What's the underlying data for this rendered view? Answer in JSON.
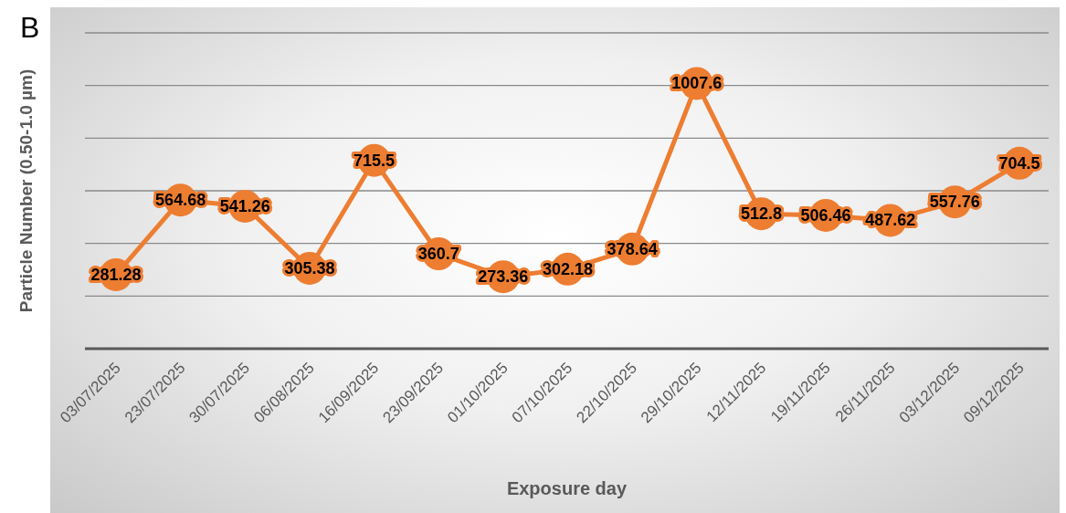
{
  "chart_data": {
    "type": "line",
    "xlabel": "Exposure day",
    "ylabel": "Particle Number (0.50-1.0 µm)",
    "annotations": [
      "B"
    ],
    "categories": [
      "03/07/2025",
      "23/07/2025",
      "30/07/2025",
      "06/08/2025",
      "16/09/2025",
      "23/09/2025",
      "01/10/2025",
      "07/10/2025",
      "22/10/2025",
      "29/10/2025",
      "12/11/2025",
      "19/11/2025",
      "26/11/2025",
      "03/12/2025",
      "09/12/2025"
    ],
    "series": [
      {
        "color": "#ed7d31",
        "values": [
          281.28,
          564.68,
          541.26,
          305.38,
          715.5,
          360.7,
          273.36,
          302.18,
          378.64,
          1007.6,
          512.8,
          506.46,
          487.62,
          557.76,
          704.5
        ]
      }
    ],
    "tick_labels": "x",
    "grid": "y",
    "legend": false,
    "marker": "circle",
    "line_style": "solid",
    "data_labels": true
  }
}
